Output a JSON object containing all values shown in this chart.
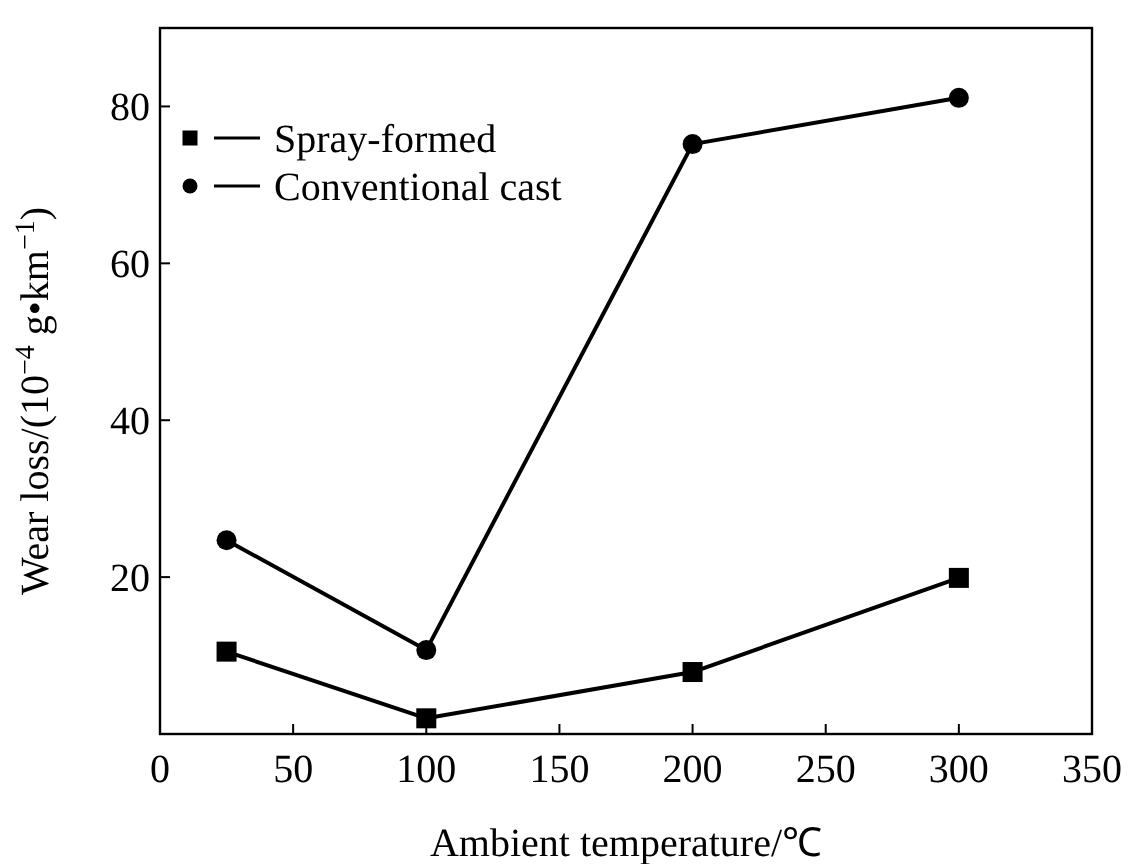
{
  "chart_data": {
    "type": "line",
    "xlabel": "Ambient temperature/℃",
    "ylabel": "Wear loss/(10$^{−4}$ g•km$^{−1}$)",
    "x": [
      25,
      100,
      200,
      300
    ],
    "series": [
      {
        "name": "Spray-formed",
        "color": "#000000",
        "marker": "square",
        "values": [
          10.5,
          2,
          7.9,
          19.9
        ]
      },
      {
        "name": "Conventional cast",
        "color": "#000000",
        "marker": "circle",
        "values": [
          24.7,
          10.7,
          75.2,
          81.1
        ]
      }
    ],
    "xlim": [
      0,
      350
    ],
    "xticks": [
      0,
      50,
      100,
      150,
      200,
      250,
      300,
      350
    ],
    "ylim": [
      0,
      90
    ],
    "yticks": [
      20,
      40,
      60,
      80
    ],
    "legend": "top left",
    "grid": false,
    "line_style": "solid"
  }
}
